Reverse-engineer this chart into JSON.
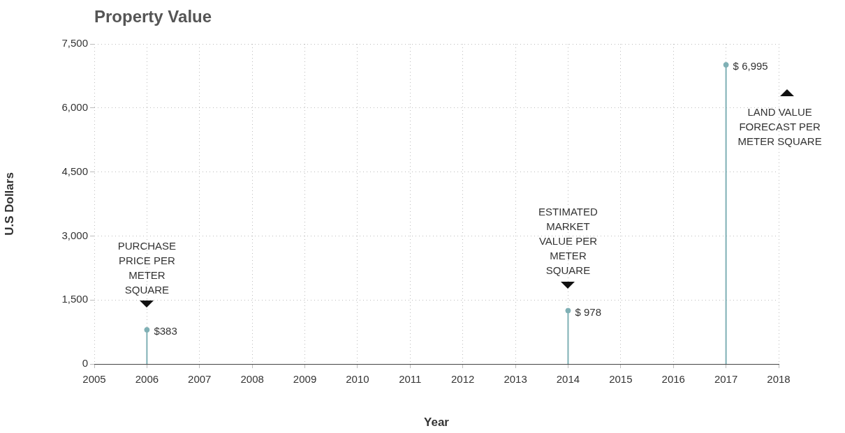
{
  "chart_data": {
    "type": "lollipop",
    "title": "Property Value",
    "xlabel": "Year",
    "ylabel": "U.S Dollars",
    "x": [
      2006,
      2014,
      2017
    ],
    "values": [
      800,
      1250,
      7010
    ],
    "color": "#7fb0b5",
    "xlim": [
      2005,
      2018
    ],
    "xticks": [
      2005,
      2006,
      2007,
      2008,
      2009,
      2010,
      2011,
      2012,
      2013,
      2014,
      2015,
      2016,
      2017,
      2018
    ],
    "ylim": [
      0,
      7500
    ],
    "yticks": [
      0,
      {
        "value": 1500,
        "label": "1,500"
      },
      {
        "value": 3000,
        "label": "3,000"
      },
      {
        "value": 4500,
        "label": "4,500"
      },
      {
        "value": 6000,
        "label": "6,000"
      },
      {
        "value": 7500,
        "label": "7,500"
      }
    ],
    "grid": true,
    "marker": "circle",
    "annotations": [
      {
        "text": "$383",
        "x": 2006,
        "y": 800
      },
      {
        "text": "$ 978",
        "x": 2014,
        "y": 1250
      },
      {
        "text": "$ 6,995",
        "x": 2017,
        "y": 7010
      },
      "PURCHASE\nPRICE PER\nMETER\nSQUARE",
      "ESTIMATED\nMARKET\nVALUE PER\nMETER\nSQUARE",
      "LAND VALUE\nFORECAST PER\nMETER SQUARE"
    ]
  }
}
